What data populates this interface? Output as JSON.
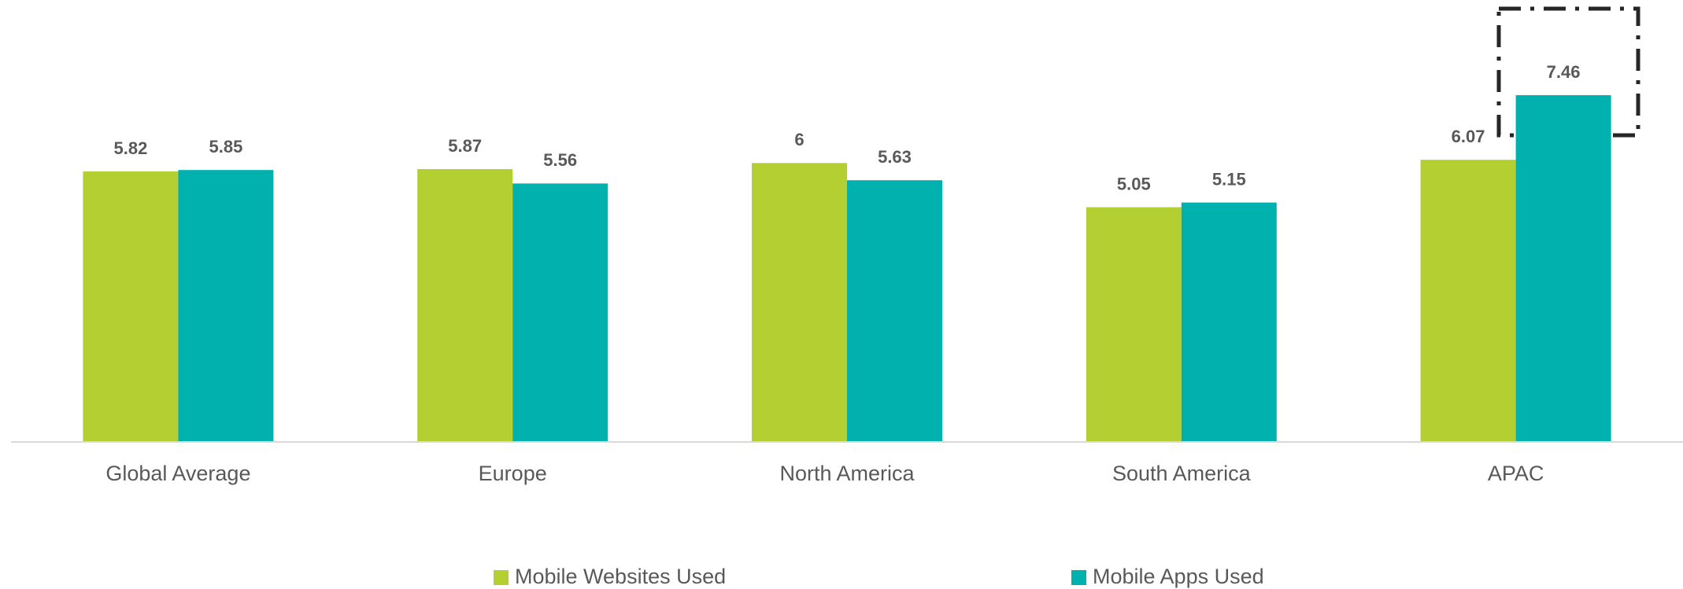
{
  "chart_data": {
    "type": "bar",
    "categories": [
      "Global Average",
      "Europe",
      "North America",
      "South America",
      "APAC"
    ],
    "series": [
      {
        "name": "Mobile Websites Used",
        "color": "#b3cf31",
        "values": [
          5.82,
          5.87,
          6,
          5.05,
          6.07
        ]
      },
      {
        "name": "Mobile Apps Used",
        "color": "#00b1ae",
        "values": [
          5.85,
          5.56,
          5.63,
          5.15,
          7.46
        ]
      }
    ],
    "ylim": [
      0,
      9
    ],
    "legend": "bottom"
  }
}
